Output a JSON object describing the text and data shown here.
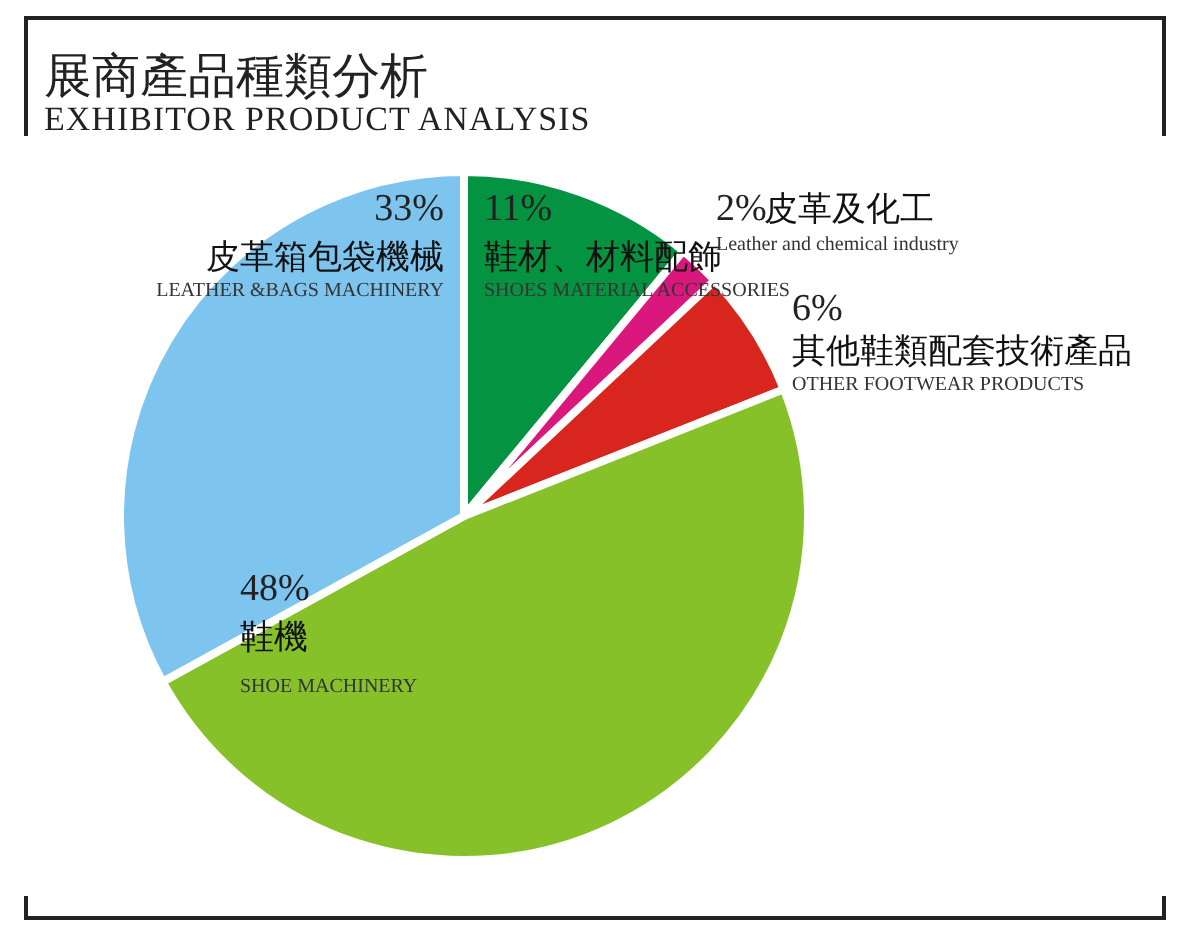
{
  "chart_data": {
    "type": "pie",
    "title": "展商產品種類分析",
    "subtitle": "EXHIBITOR PRODUCT ANALYSIS",
    "categories": [
      "鞋材、材料配飾",
      "皮革及化工",
      "其他鞋類配套技術產品",
      "鞋機",
      "皮革箱包袋機械"
    ],
    "values": [
      11,
      2,
      6,
      48,
      33
    ],
    "value_labels": [
      "11%",
      "2%",
      "6%",
      "48%",
      "33%"
    ],
    "colors": [
      "#049441",
      "#d9177d",
      "#d8261f",
      "#86c12a",
      "#7dc4ee"
    ],
    "annotations": [
      "SHOES MATERIAL ACCESSORIES",
      "Leather and chemical industry",
      "OTHER FOOTWEAR PRODUCTS",
      "SHOE MACHINERY",
      "LEATHER &BAGS MACHINERY"
    ]
  }
}
